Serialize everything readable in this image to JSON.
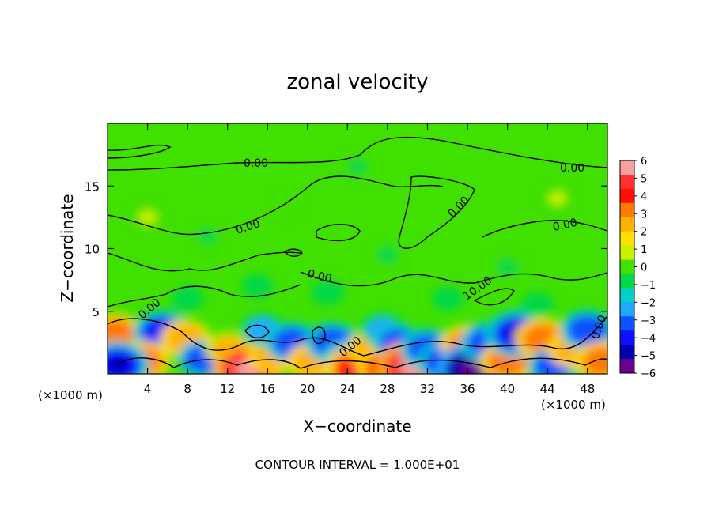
{
  "chart_data": {
    "type": "heatmap",
    "title": "zonal velocity",
    "xlabel": "X−coordinate",
    "ylabel": "Z−coordinate",
    "x_unit_left": "(×1000 m)",
    "x_unit_right": "(×1000 m)",
    "xlim": [
      0,
      50
    ],
    "ylim": [
      0,
      20
    ],
    "xticks": [
      4,
      8,
      12,
      16,
      20,
      24,
      28,
      32,
      36,
      40,
      44,
      48
    ],
    "yticks": [
      5,
      10,
      15
    ],
    "colorbar": {
      "min": -6,
      "max": 6,
      "tick_labels": [
        "6",
        "5",
        "4",
        "3",
        "2",
        "1",
        "0",
        "−1",
        "−2",
        "−3",
        "−4",
        "−5",
        "−6"
      ],
      "colors": [
        "#f4a0a0",
        "#ff3030",
        "#ff1000",
        "#ff7a00",
        "#ffb000",
        "#ffe000",
        "#c8f000",
        "#40e000",
        "#00d84a",
        "#00d0c8",
        "#20a8ff",
        "#1050ff",
        "#1010ff",
        "#0000b0",
        "#6a0090"
      ]
    },
    "contour_labels": [
      "0.00",
      "0.00",
      "0.00",
      "0.00",
      "0.00",
      "0.00",
      "0.00",
      "0.00",
      "10.00",
      "0.00"
    ],
    "anomalies": [
      {
        "x": 0.7,
        "z": 3.2,
        "v": 3.5
      },
      {
        "x": 5.5,
        "z": 3.3,
        "v": -4.0
      },
      {
        "x": 7.8,
        "z": 2.8,
        "v": 3.0
      },
      {
        "x": 3.5,
        "z": 1.0,
        "v": 3.5
      },
      {
        "x": 1.0,
        "z": 0.7,
        "v": -4.5
      },
      {
        "x": 9.5,
        "z": 1.2,
        "v": -3.0
      },
      {
        "x": 12.0,
        "z": 2.0,
        "v": 2.5
      },
      {
        "x": 14.0,
        "z": 0.4,
        "v": 5.0
      },
      {
        "x": 16.5,
        "z": 1.5,
        "v": 3.0
      },
      {
        "x": 15.5,
        "z": 3.5,
        "v": -2.5
      },
      {
        "x": 18.5,
        "z": 2.5,
        "v": -3.5
      },
      {
        "x": 20.5,
        "z": 1.0,
        "v": 3.0
      },
      {
        "x": 22.5,
        "z": 2.5,
        "v": -3.5
      },
      {
        "x": 24.0,
        "z": 1.2,
        "v": -3.0
      },
      {
        "x": 25.0,
        "z": 0.4,
        "v": 4.5
      },
      {
        "x": 26.5,
        "z": 2.0,
        "v": 3.0
      },
      {
        "x": 28.0,
        "z": 0.5,
        "v": 4.0
      },
      {
        "x": 27.5,
        "z": 3.5,
        "v": -2.5
      },
      {
        "x": 29.0,
        "z": 2.5,
        "v": -3.0
      },
      {
        "x": 30.5,
        "z": 0.5,
        "v": 5.5
      },
      {
        "x": 32.0,
        "z": 2.0,
        "v": -3.5
      },
      {
        "x": 34.0,
        "z": 0.9,
        "v": -4.0
      },
      {
        "x": 36.0,
        "z": 2.3,
        "v": 3.5
      },
      {
        "x": 36.5,
        "z": 0.3,
        "v": -5.5
      },
      {
        "x": 38.0,
        "z": 2.5,
        "v": -3.5
      },
      {
        "x": 40.0,
        "z": 1.0,
        "v": 3.5
      },
      {
        "x": 41.0,
        "z": 3.2,
        "v": -4.5
      },
      {
        "x": 43.5,
        "z": 2.8,
        "v": 3.5
      },
      {
        "x": 44.5,
        "z": 0.6,
        "v": -3.0
      },
      {
        "x": 46.5,
        "z": 2.0,
        "v": 3.0
      },
      {
        "x": 48.0,
        "z": 3.5,
        "v": -3.5
      },
      {
        "x": 49.5,
        "z": 1.0,
        "v": 3.5
      },
      {
        "x": 8.0,
        "z": 6.0,
        "v": -1.2
      },
      {
        "x": 15.0,
        "z": 7.0,
        "v": -1.0
      },
      {
        "x": 22.0,
        "z": 6.5,
        "v": -1.2
      },
      {
        "x": 34.0,
        "z": 6.0,
        "v": -1.0
      },
      {
        "x": 43.0,
        "z": 5.5,
        "v": -1.2
      },
      {
        "x": 28.0,
        "z": 9.5,
        "v": -0.8
      },
      {
        "x": 25.0,
        "z": 16.5,
        "v": -0.6
      },
      {
        "x": 10.0,
        "z": 11.0,
        "v": -0.6
      },
      {
        "x": 40.0,
        "z": 8.5,
        "v": -0.8
      },
      {
        "x": 4.0,
        "z": 12.5,
        "v": 0.6
      },
      {
        "x": 45.0,
        "z": 14.0,
        "v": 0.5
      },
      {
        "x": 18.0,
        "z": 13.5,
        "v": 0.4
      }
    ]
  },
  "footer": {
    "contour_interval": "CONTOUR INTERVAL = 1.000E+01"
  }
}
